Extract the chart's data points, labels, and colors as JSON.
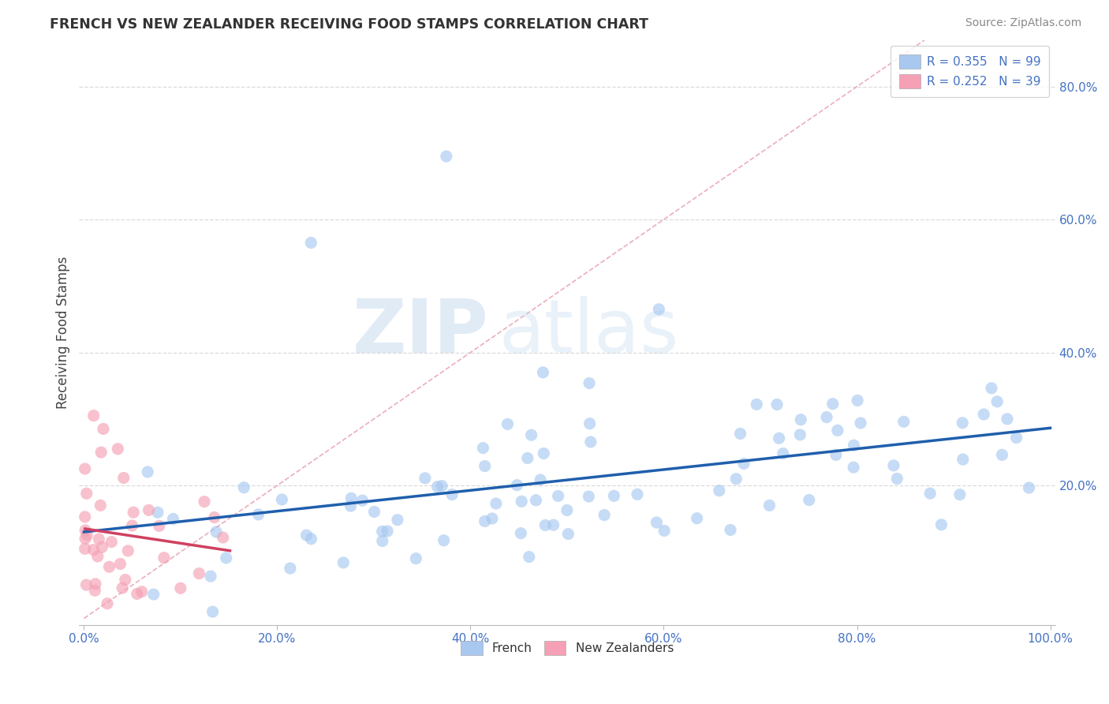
{
  "title": "FRENCH VS NEW ZEALANDER RECEIVING FOOD STAMPS CORRELATION CHART",
  "source": "Source: ZipAtlas.com",
  "xlabel_french": "French",
  "xlabel_nz": "New Zealanders",
  "ylabel": "Receiving Food Stamps",
  "R_french": 0.355,
  "N_french": 99,
  "R_nz": 0.252,
  "N_nz": 39,
  "xlim": [
    -0.005,
    1.005
  ],
  "ylim": [
    -0.01,
    0.87
  ],
  "xticks": [
    0.0,
    0.2,
    0.4,
    0.6,
    0.8,
    1.0
  ],
  "yticks": [
    0.2,
    0.4,
    0.6,
    0.8
  ],
  "xtick_labels": [
    "0.0%",
    "20.0%",
    "40.0%",
    "60.0%",
    "80.0%",
    "100.0%"
  ],
  "ytick_labels": [
    "20.0%",
    "40.0%",
    "60.0%",
    "80.0%"
  ],
  "color_french": "#A8C8F0",
  "color_french_line": "#1F5FAD",
  "color_nz": "#F5A0B5",
  "color_nz_line": "#D04060",
  "color_diagonal": "#E8A0B0",
  "background_color": "#FFFFFF",
  "grid_color": "#D8D8D8",
  "watermark_zip": "ZIP",
  "watermark_atlas": "atlas",
  "tick_color": "#4472C4"
}
